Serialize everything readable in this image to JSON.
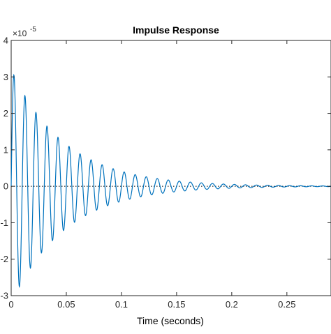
{
  "chart_data": {
    "type": "line",
    "title": "Impulse Response",
    "xlabel": "Time (seconds)",
    "ylabel": "",
    "y_exponent_label": "×10",
    "y_exponent_power": "-5",
    "xlim": [
      0,
      0.29
    ],
    "ylim": [
      -3,
      4
    ],
    "x_ticks": [
      0,
      0.05,
      0.1,
      0.15,
      0.2,
      0.25
    ],
    "x_tick_labels": [
      "0",
      "0.05",
      "0.1",
      "0.15",
      "0.2",
      "0.25"
    ],
    "y_ticks": [
      -3,
      -2,
      -1,
      0,
      1,
      2,
      3,
      4
    ],
    "y_tick_labels": [
      "-3",
      "-2",
      "-1",
      "0",
      "1",
      "2",
      "3",
      "4"
    ],
    "zero_reference_line": "dotted",
    "grid": false,
    "series": [
      {
        "line_color": "#0072bd",
        "envelope_peak": 3.05,
        "decay_rate_per_second": 20.5,
        "frequency_hz": 100,
        "peak_time_seconds": 0.0025,
        "sample_step_seconds": 0.0002
      }
    ],
    "colors": {
      "axis": "#262626",
      "zero_line": "#000000",
      "series": "#0072bd"
    }
  }
}
